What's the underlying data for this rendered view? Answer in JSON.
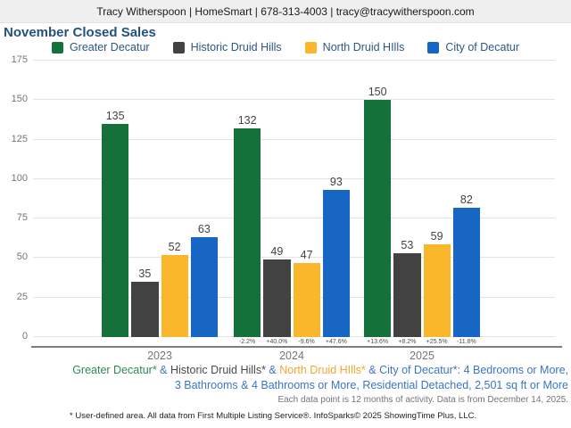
{
  "header": {
    "contact_line": "Tracy Witherspoon | HomeSmart | 678-313-4003 | tracy@tracywitherspoon.com"
  },
  "chart": {
    "title": "November Closed Sales"
  },
  "chart_data": {
    "type": "bar",
    "title": "November Closed Sales",
    "categories": [
      "2023",
      "2024",
      "2025"
    ],
    "series": [
      {
        "name": "Greater Decatur",
        "color": "#14713a",
        "values": [
          135,
          132,
          150
        ],
        "pct_change": [
          "",
          "-2.2%",
          "+13.6%"
        ]
      },
      {
        "name": "Historic Druid Hills",
        "color": "#424242",
        "values": [
          35,
          49,
          53
        ],
        "pct_change": [
          "",
          "+40.0%",
          "+8.2%"
        ]
      },
      {
        "name": "North Druid HIlls",
        "color": "#fbb72c",
        "values": [
          52,
          47,
          59
        ],
        "pct_change": [
          "",
          "-9.6%",
          "+25.5%"
        ]
      },
      {
        "name": "City of Decatur",
        "color": "#1866c4",
        "values": [
          63,
          93,
          82
        ],
        "pct_change": [
          "",
          "+47.6%",
          "-11.8%"
        ]
      }
    ],
    "y_ticks": [
      0,
      25,
      50,
      75,
      100,
      125,
      150,
      175
    ],
    "ylim": [
      0,
      175
    ],
    "xlabel": "",
    "ylabel": "",
    "grid": true,
    "legend_position": "top"
  },
  "footer": {
    "criteria_segments": [
      {
        "text": "Greater Decatur*",
        "color": "#2e8b57"
      },
      {
        "text": " & ",
        "color": "#3b76c5"
      },
      {
        "text": "Historic Druid Hills*",
        "color": "#4a4a4a"
      },
      {
        "text": " & ",
        "color": "#3b76c5"
      },
      {
        "text": "North Druid HIlls*",
        "color": "#f2a72e"
      },
      {
        "text": " & ",
        "color": "#3b76c5"
      },
      {
        "text": "City of Decatur*",
        "color": "#3b76c5"
      },
      {
        "text": ": 4 Bedrooms or More, 3 Bathrooms & 4 Bathrooms or More, Residential Detached, 2,501 sq ft or More",
        "color": "#3b76c5"
      }
    ],
    "activity_note": "Each data point is 12 months of activity. Data is from December 14, 2025.",
    "disclaimer": "* User-defined area. All data from First Multiple Listing Service®. InfoSparks© 2025 ShowingTime Plus, LLC."
  }
}
